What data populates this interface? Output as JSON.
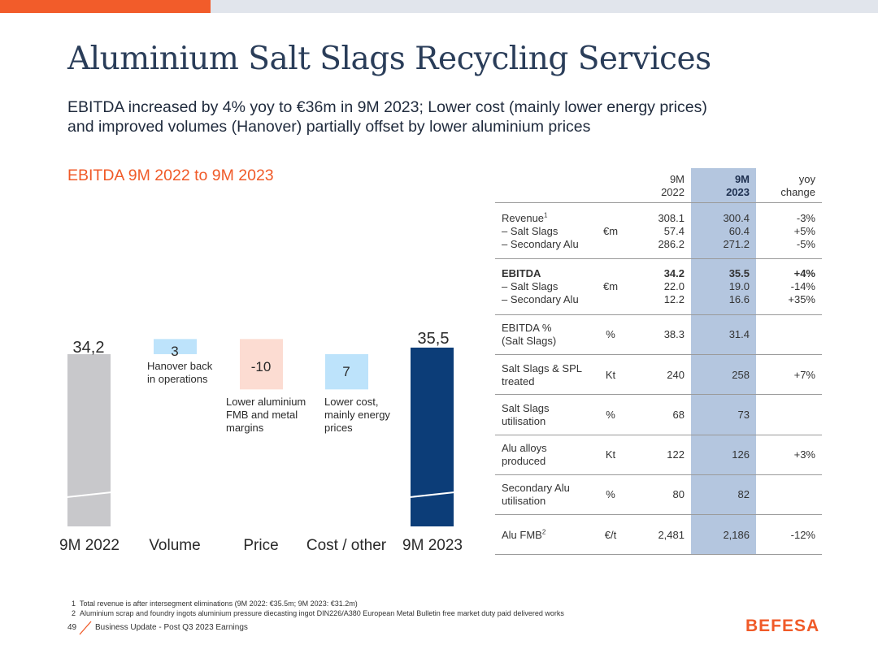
{
  "header": {
    "title": "Aluminium Salt Slags Recycling Services"
  },
  "subtitle": {
    "line1": "EBITDA increased by 4% yoy to €36m in 9M 2023; Lower cost (mainly lower energy prices)",
    "line2": "and improved volumes (Hanover) partially offset by lower aluminium prices"
  },
  "chart_section": {
    "title": "EBITDA 9M 2022 to 9M 2023"
  },
  "chart_data": {
    "type": "bar",
    "subtype": "waterfall",
    "title": "EBITDA 9M 2022 to 9M 2023",
    "categories": [
      "9M 2022",
      "Volume",
      "Price",
      "Cost / other",
      "9M 2023"
    ],
    "values": [
      34.2,
      3,
      -10,
      7,
      35.5
    ],
    "value_labels": [
      "34,2",
      "3",
      "-10",
      "7",
      "35,5"
    ],
    "kinds": [
      "total",
      "delta",
      "delta",
      "delta",
      "total"
    ],
    "annotations": {
      "volume": [
        "Hanover back",
        "in operations"
      ],
      "price": [
        "Lower aluminium",
        "FMB and metal",
        "margins"
      ],
      "cost": [
        "Lower cost,",
        "mainly energy",
        "prices"
      ]
    },
    "colors": {
      "start": "#c8c8cb",
      "positive": "#bde3fb",
      "negative": "#fcdcd2",
      "end": "#0c3d78"
    }
  },
  "table": {
    "headers": {
      "col1": [
        "9M",
        "2022"
      ],
      "col2": [
        "9M",
        "2023"
      ],
      "col3": [
        "yoy",
        "change"
      ]
    },
    "groups": [
      {
        "labels": [
          "Revenue",
          "– Salt Slags",
          "– Secondary Alu"
        ],
        "sup": "1",
        "unit": "€m",
        "v2022": [
          "308.1",
          "57.4",
          "286.2"
        ],
        "v2023": [
          "300.4",
          "60.4",
          "271.2"
        ],
        "yoy": [
          "-3%",
          "+5%",
          "-5%"
        ]
      },
      {
        "labels": [
          "EBITDA",
          "– Salt Slags",
          "– Secondary Alu"
        ],
        "unit": "€m",
        "v2022": [
          "34.2",
          "22.0",
          "12.2"
        ],
        "v2023": [
          "35.5",
          "19.0",
          "16.6"
        ],
        "yoy": [
          "+4%",
          "-14%",
          "+35%"
        ]
      }
    ],
    "rows": [
      {
        "label": [
          "EBITDA %",
          "(Salt Slags)"
        ],
        "unit": "%",
        "v2022": "38.3",
        "v2023": "31.4",
        "yoy": ""
      },
      {
        "label": [
          "Salt Slags & SPL",
          "treated"
        ],
        "unit": "Kt",
        "v2022": "240",
        "v2023": "258",
        "yoy": "+7%"
      },
      {
        "label": [
          "Salt Slags",
          "utilisation"
        ],
        "unit": "%",
        "v2022": "68",
        "v2023": "73",
        "yoy": ""
      },
      {
        "label": [
          "Alu alloys",
          "produced"
        ],
        "unit": "Kt",
        "v2022": "122",
        "v2023": "126",
        "yoy": "+3%"
      },
      {
        "label": [
          "Secondary Alu",
          "utilisation"
        ],
        "unit": "%",
        "v2022": "80",
        "v2023": "82",
        "yoy": ""
      },
      {
        "label": [
          "Alu FMB"
        ],
        "sup": "2",
        "unit": "€/t",
        "v2022": "2,481",
        "v2023": "2,186",
        "yoy": "-12%"
      }
    ]
  },
  "footnotes": {
    "n1_num": "1",
    "n1": "Total revenue is after intersegment eliminations (9M 2022: €35.5m; 9M 2023: €31.2m)",
    "n2_num": "2",
    "n2": "Aluminium scrap and foundry ingots aluminium pressure diecasting ingot DIN226/A380 European Metal Bulletin free market duty paid delivered works"
  },
  "footer": {
    "page": "49",
    "text": "Business Update - Post Q3 2023 Earnings",
    "logo": "BEFESA"
  }
}
